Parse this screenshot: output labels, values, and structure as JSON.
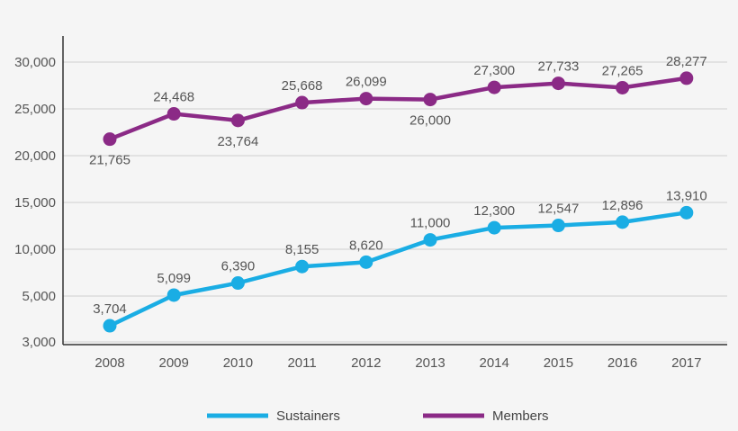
{
  "chart_data": {
    "type": "line",
    "title": "",
    "xlabel": "",
    "ylabel": "",
    "categories": [
      "2008",
      "2009",
      "2010",
      "2011",
      "2012",
      "2013",
      "2014",
      "2015",
      "2016",
      "2017"
    ],
    "y_ticks": [
      3000,
      5000,
      10000,
      15000,
      20000,
      25000,
      30000
    ],
    "y_tick_labels": [
      "3,000",
      "5,000",
      "10,000",
      "15,000",
      "20,000",
      "25,000",
      "30,000"
    ],
    "grid": true,
    "legend_position": "bottom-center",
    "series": [
      {
        "name": "Sustainers",
        "color": "#1aade4",
        "values": [
          3704,
          5099,
          6390,
          8155,
          8620,
          11000,
          12300,
          12547,
          12896,
          13910
        ],
        "labels": [
          "3,704",
          "5,099",
          "6,390",
          "8,155",
          "8,620",
          "11,000",
          "12,300",
          "12,547",
          "12,896",
          "13,910"
        ]
      },
      {
        "name": "Members",
        "color": "#8b2a86",
        "values": [
          21765,
          24468,
          23764,
          25668,
          26099,
          26000,
          27300,
          27733,
          27265,
          28277
        ],
        "labels": [
          "21,765",
          "24,468",
          "23,764",
          "25,668",
          "26,099",
          "26,000",
          "27,300",
          "27,733",
          "27,265",
          "28,277"
        ]
      }
    ]
  }
}
